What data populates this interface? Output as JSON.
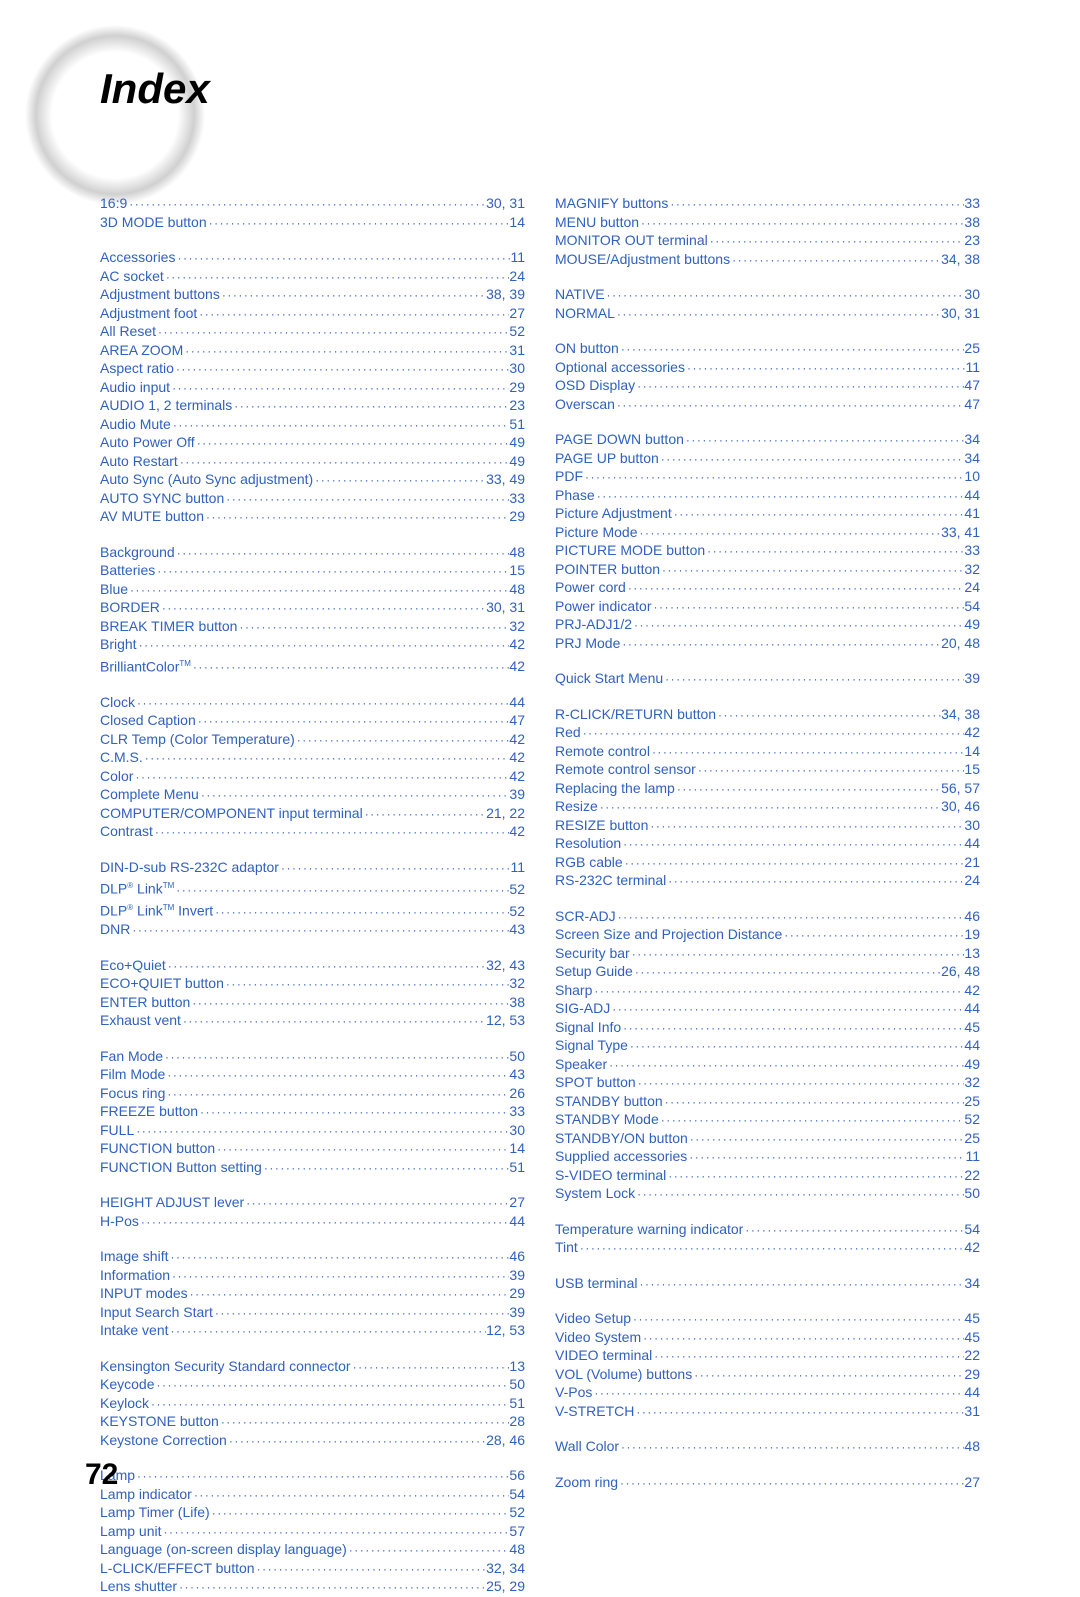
{
  "title": "Index",
  "pageNumber": "72",
  "colors": {
    "link": "#3060c0",
    "text": "#000000",
    "background": "#ffffff"
  },
  "columns": [
    [
      {
        "label": "16:9",
        "page": "30, 31"
      },
      {
        "label": "3D MODE button",
        "page": "14"
      },
      {
        "gap": true
      },
      {
        "label": "Accessories",
        "page": "11"
      },
      {
        "label": "AC socket",
        "page": "24"
      },
      {
        "label": "Adjustment buttons",
        "page": "38, 39"
      },
      {
        "label": "Adjustment foot",
        "page": "27"
      },
      {
        "label": "All Reset",
        "page": "52"
      },
      {
        "label": "AREA ZOOM",
        "page": "31"
      },
      {
        "label": "Aspect ratio",
        "page": "30"
      },
      {
        "label": "Audio input",
        "page": "29"
      },
      {
        "label": "AUDIO 1, 2 terminals",
        "page": "23"
      },
      {
        "label": "Audio Mute",
        "page": "51"
      },
      {
        "label": "Auto Power Off",
        "page": "49"
      },
      {
        "label": "Auto Restart",
        "page": "49"
      },
      {
        "label": "Auto Sync (Auto Sync adjustment)",
        "page": "33, 49"
      },
      {
        "label": "AUTO SYNC button",
        "page": "33"
      },
      {
        "label": "AV MUTE button",
        "page": "29"
      },
      {
        "gap": true
      },
      {
        "label": "Background",
        "page": "48"
      },
      {
        "label": "Batteries",
        "page": "15"
      },
      {
        "label": "Blue",
        "page": "48"
      },
      {
        "label": "BORDER",
        "page": "30, 31"
      },
      {
        "label": "BREAK TIMER button",
        "page": "32"
      },
      {
        "label": "Bright",
        "page": "42"
      },
      {
        "label": "BrilliantColor™",
        "page": "42"
      },
      {
        "gap": true
      },
      {
        "label": "Clock",
        "page": "44"
      },
      {
        "label": "Closed Caption",
        "page": "47"
      },
      {
        "label": "CLR Temp (Color Temperature)",
        "page": "42"
      },
      {
        "label": "C.M.S.",
        "page": "42"
      },
      {
        "label": "Color",
        "page": "42"
      },
      {
        "label": "Complete Menu",
        "page": "39"
      },
      {
        "label": "COMPUTER/COMPONENT input terminal",
        "page": "21, 22"
      },
      {
        "label": "Contrast",
        "page": "42"
      },
      {
        "gap": true
      },
      {
        "label": "DIN-D-sub RS-232C adaptor",
        "page": "11"
      },
      {
        "label": "DLP® Link™",
        "page": "52"
      },
      {
        "label": "DLP® Link™ Invert",
        "page": "52"
      },
      {
        "label": "DNR",
        "page": "43"
      },
      {
        "gap": true
      },
      {
        "label": "Eco+Quiet",
        "page": "32, 43"
      },
      {
        "label": "ECO+QUIET button",
        "page": "32"
      },
      {
        "label": "ENTER button",
        "page": "38"
      },
      {
        "label": "Exhaust vent",
        "page": "12, 53"
      },
      {
        "gap": true
      },
      {
        "label": "Fan Mode",
        "page": "50"
      },
      {
        "label": "Film Mode",
        "page": "43"
      },
      {
        "label": "Focus ring",
        "page": "26"
      },
      {
        "label": "FREEZE button",
        "page": "33"
      },
      {
        "label": "FULL",
        "page": "30"
      },
      {
        "label": "FUNCTION button",
        "page": "14"
      },
      {
        "label": "FUNCTION Button setting",
        "page": "51"
      },
      {
        "gap": true
      },
      {
        "label": "HEIGHT ADJUST lever",
        "page": "27"
      },
      {
        "label": "H-Pos",
        "page": "44"
      },
      {
        "gap": true
      },
      {
        "label": "Image shift",
        "page": "46"
      },
      {
        "label": "Information",
        "page": "39"
      },
      {
        "label": "INPUT modes",
        "page": "29"
      },
      {
        "label": "Input Search Start",
        "page": "39"
      },
      {
        "label": "Intake vent",
        "page": "12, 53"
      },
      {
        "gap": true
      },
      {
        "label": "Kensington Security Standard connector",
        "page": "13"
      },
      {
        "label": "Keycode",
        "page": "50"
      },
      {
        "label": "Keylock",
        "page": "51"
      },
      {
        "label": "KEYSTONE button",
        "page": "28"
      },
      {
        "label": "Keystone Correction",
        "page": "28, 46"
      },
      {
        "gap": true
      },
      {
        "label": "Lamp",
        "page": "56"
      },
      {
        "label": "Lamp indicator",
        "page": "54"
      },
      {
        "label": "Lamp Timer (Life)",
        "page": "52"
      },
      {
        "label": "Lamp unit",
        "page": "57"
      },
      {
        "label": "Language (on-screen display language)",
        "page": "48"
      },
      {
        "label": "L-CLICK/EFFECT button",
        "page": "32, 34"
      },
      {
        "label": "Lens shutter",
        "page": "25, 29"
      }
    ],
    [
      {
        "label": "MAGNIFY buttons",
        "page": "33"
      },
      {
        "label": "MENU button",
        "page": "38"
      },
      {
        "label": "MONITOR OUT terminal",
        "page": "23"
      },
      {
        "label": "MOUSE/Adjustment buttons",
        "page": "34, 38"
      },
      {
        "gap": true
      },
      {
        "label": "NATIVE",
        "page": "30"
      },
      {
        "label": "NORMAL",
        "page": "30, 31"
      },
      {
        "gap": true
      },
      {
        "label": "ON button",
        "page": "25"
      },
      {
        "label": "Optional accessories",
        "page": "11"
      },
      {
        "label": "OSD Display",
        "page": "47"
      },
      {
        "label": "Overscan",
        "page": "47"
      },
      {
        "gap": true
      },
      {
        "label": "PAGE DOWN button",
        "page": "34"
      },
      {
        "label": "PAGE UP button",
        "page": "34"
      },
      {
        "label": "PDF",
        "page": "10"
      },
      {
        "label": "Phase",
        "page": "44"
      },
      {
        "label": "Picture Adjustment",
        "page": "41"
      },
      {
        "label": "Picture Mode",
        "page": "33, 41"
      },
      {
        "label": "PICTURE MODE button",
        "page": "33"
      },
      {
        "label": "POINTER button",
        "page": "32"
      },
      {
        "label": "Power cord",
        "page": "24"
      },
      {
        "label": "Power indicator",
        "page": "54"
      },
      {
        "label": "PRJ-ADJ1/2",
        "page": "49"
      },
      {
        "label": "PRJ Mode",
        "page": "20, 48"
      },
      {
        "gap": true
      },
      {
        "label": "Quick Start Menu",
        "page": "39"
      },
      {
        "gap": true
      },
      {
        "label": "R-CLICK/RETURN button",
        "page": "34, 38"
      },
      {
        "label": "Red",
        "page": "42"
      },
      {
        "label": "Remote control",
        "page": "14"
      },
      {
        "label": "Remote control sensor",
        "page": "15"
      },
      {
        "label": "Replacing the lamp",
        "page": "56, 57"
      },
      {
        "label": "Resize",
        "page": "30, 46"
      },
      {
        "label": "RESIZE button",
        "page": "30"
      },
      {
        "label": "Resolution",
        "page": "44"
      },
      {
        "label": "RGB cable",
        "page": "21"
      },
      {
        "label": "RS-232C terminal",
        "page": "24"
      },
      {
        "gap": true
      },
      {
        "label": "SCR-ADJ",
        "page": "46"
      },
      {
        "label": "Screen Size and Projection Distance",
        "page": "19"
      },
      {
        "label": "Security bar",
        "page": "13"
      },
      {
        "label": "Setup Guide",
        "page": "26, 48"
      },
      {
        "label": "Sharp",
        "page": "42"
      },
      {
        "label": "SIG-ADJ",
        "page": "44"
      },
      {
        "label": "Signal Info",
        "page": "45"
      },
      {
        "label": "Signal Type",
        "page": "44"
      },
      {
        "label": "Speaker",
        "page": "49"
      },
      {
        "label": "SPOT button",
        "page": "32"
      },
      {
        "label": "STANDBY button",
        "page": "25"
      },
      {
        "label": "STANDBY Mode",
        "page": "52"
      },
      {
        "label": "STANDBY/ON button",
        "page": "25"
      },
      {
        "label": "Supplied accessories",
        "page": "11"
      },
      {
        "label": "S-VIDEO terminal",
        "page": "22"
      },
      {
        "label": "System Lock",
        "page": "50"
      },
      {
        "gap": true
      },
      {
        "label": "Temperature warning indicator",
        "page": "54"
      },
      {
        "label": "Tint",
        "page": "42"
      },
      {
        "gap": true
      },
      {
        "label": "USB terminal",
        "page": "34"
      },
      {
        "gap": true
      },
      {
        "label": "Video Setup",
        "page": "45"
      },
      {
        "label": "Video System",
        "page": "45"
      },
      {
        "label": "VIDEO terminal",
        "page": "22"
      },
      {
        "label": "VOL (Volume) buttons",
        "page": "29"
      },
      {
        "label": "V-Pos",
        "page": "44"
      },
      {
        "label": "V-STRETCH",
        "page": "31"
      },
      {
        "gap": true
      },
      {
        "label": "Wall Color",
        "page": "48"
      },
      {
        "gap": true
      },
      {
        "label": "Zoom ring",
        "page": "27"
      }
    ]
  ]
}
